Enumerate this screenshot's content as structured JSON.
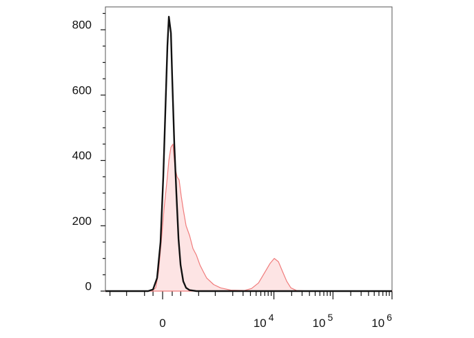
{
  "chart_data": {
    "type": "histogram-overlay",
    "xscale": "asinh",
    "xlim": [
      -1200,
      1000000
    ],
    "xticks": [
      {
        "value": 0,
        "label": "0"
      },
      {
        "value": 10000,
        "label": "10",
        "exponent": "4"
      },
      {
        "value": 100000,
        "label": "10",
        "exponent": "5"
      },
      {
        "value": 1000000,
        "label": "10",
        "exponent": "6"
      }
    ],
    "xminorticks": [
      -1000,
      -500,
      -200,
      -100,
      100,
      200,
      500,
      1000,
      2000,
      3000,
      4000,
      5000,
      6000,
      7000,
      8000,
      9000,
      20000,
      30000,
      40000,
      50000,
      60000,
      70000,
      80000,
      90000,
      200000,
      300000,
      400000,
      500000,
      600000,
      700000,
      800000,
      900000
    ],
    "ylim": [
      0,
      870
    ],
    "yticks": [
      0,
      200,
      400,
      600,
      800
    ],
    "yminorticks": [
      50,
      100,
      150,
      250,
      300,
      350,
      450,
      500,
      550,
      650,
      700,
      750,
      850
    ],
    "series": [
      {
        "color": "#f07b7b",
        "fill": "#fde4e4",
        "x": [
          -1200,
          -116,
          -71,
          -42,
          -14,
          14,
          42,
          64,
          86,
          108,
          131,
          155,
          180,
          207,
          234,
          274,
          328,
          386,
          452,
          528,
          609,
          705,
          936,
          1235,
          1858,
          3194,
          4184,
          5475,
          7162,
          8640,
          10150,
          11930,
          14020,
          16490,
          19370,
          24000,
          41100,
          1000000
        ],
        "values": [
          0,
          0,
          10,
          60,
          150,
          250,
          330,
          400,
          440,
          450,
          380,
          350,
          340,
          290,
          250,
          200,
          170,
          130,
          110,
          80,
          60,
          40,
          20,
          10,
          3,
          2,
          8,
          25,
          60,
          85,
          100,
          90,
          60,
          30,
          10,
          2,
          0,
          0
        ]
      },
      {
        "color": "#111111",
        "x": [
          -1200,
          -155,
          -100,
          -57,
          -21,
          7,
          28,
          49,
          64,
          86,
          100,
          123,
          147,
          172,
          198,
          234,
          274,
          328,
          452,
          1000000
        ],
        "values": [
          0,
          0,
          5,
          40,
          150,
          350,
          550,
          750,
          840,
          790,
          650,
          450,
          300,
          160,
          80,
          30,
          10,
          3,
          0,
          0
        ]
      }
    ]
  }
}
